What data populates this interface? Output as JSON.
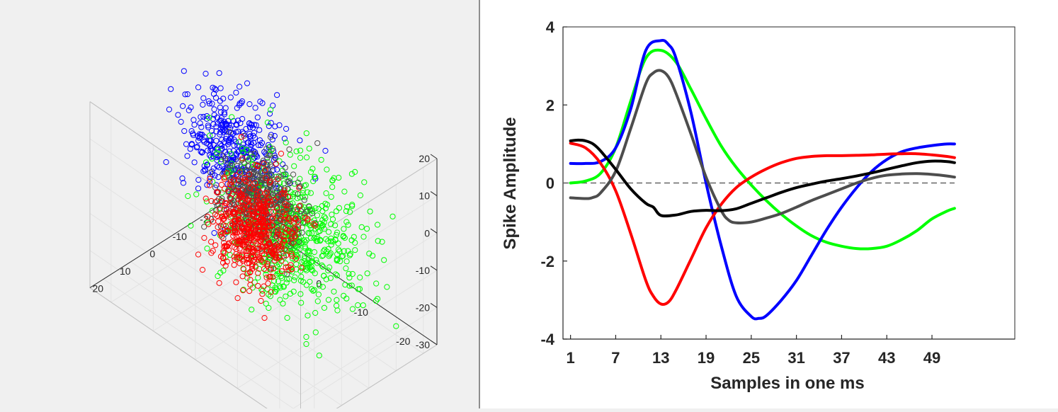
{
  "chart_data": [
    {
      "type": "scatter",
      "title": "",
      "xlabel": "",
      "ylabel": "",
      "zlabel": "",
      "xlim": [
        -25,
        25
      ],
      "ylim": [
        -25,
        25
      ],
      "zlim": [
        -30,
        20
      ],
      "x_ticks": [
        "-20",
        "-10",
        "0",
        "10",
        "20"
      ],
      "y_ticks": [
        "-20",
        "-10",
        "0",
        "10",
        "20"
      ],
      "z_ticks": [
        "-30",
        "-20",
        "-10",
        "0",
        "10",
        "20"
      ],
      "grid": true,
      "series": [
        {
          "color": "#0000ff",
          "count": 380,
          "center": [
            15,
            -12,
            -2
          ],
          "spread": [
            5,
            5,
            6
          ]
        },
        {
          "color": "#00ff00",
          "count": 700,
          "center": [
            -2,
            -6,
            -9
          ],
          "spread": [
            7,
            7,
            8
          ]
        },
        {
          "color": "#4d4d4d",
          "count": 420,
          "center": [
            2,
            -2,
            -1
          ],
          "spread": [
            4,
            4,
            5
          ]
        },
        {
          "color": "#ff0000",
          "count": 520,
          "center": [
            -6,
            13,
            4
          ],
          "spread": [
            4,
            5,
            6
          ]
        }
      ]
    },
    {
      "type": "line",
      "title": "",
      "xlabel": "Samples in one ms",
      "ylabel": "Spike Amplitude",
      "xlim": [
        0,
        60
      ],
      "ylim": [
        -4,
        4
      ],
      "x_ticks": [
        1,
        7,
        13,
        19,
        25,
        31,
        37,
        43,
        49
      ],
      "y_ticks": [
        4,
        2,
        0,
        -2,
        -4
      ],
      "zero_line": {
        "style": "dashed",
        "color": "#666666"
      },
      "series": [
        {
          "color": "#00ff00",
          "x": [
            1,
            3,
            5,
            7,
            9,
            11,
            13,
            15,
            17,
            19,
            21,
            23,
            25,
            27,
            29,
            31,
            33,
            35,
            37,
            39,
            41,
            43,
            45,
            47,
            49,
            51,
            52
          ],
          "y": [
            0,
            0.05,
            0.25,
            0.9,
            2.1,
            3.2,
            3.4,
            3.1,
            2.4,
            1.65,
            0.95,
            0.4,
            -0.05,
            -0.45,
            -0.8,
            -1.1,
            -1.35,
            -1.52,
            -1.62,
            -1.68,
            -1.68,
            -1.62,
            -1.45,
            -1.22,
            -0.92,
            -0.72,
            -0.65
          ]
        },
        {
          "color": "#0000ff",
          "x": [
            1,
            3,
            5,
            7,
            9,
            11,
            13,
            14,
            15,
            17,
            19,
            21,
            23,
            25,
            26,
            27,
            29,
            31,
            33,
            35,
            37,
            39,
            41,
            43,
            45,
            47,
            49,
            51,
            52
          ],
          "y": [
            0.5,
            0.5,
            0.55,
            0.9,
            1.9,
            3.4,
            3.65,
            3.55,
            3.2,
            1.8,
            0.0,
            -1.6,
            -2.9,
            -3.42,
            -3.47,
            -3.4,
            -3.0,
            -2.5,
            -1.85,
            -1.2,
            -0.62,
            -0.12,
            0.3,
            0.6,
            0.8,
            0.9,
            0.96,
            1.0,
            1.0
          ]
        },
        {
          "color": "#ff0000",
          "x": [
            1,
            3,
            5,
            7,
            9,
            11,
            12,
            13,
            14,
            15,
            17,
            19,
            21,
            23,
            25,
            27,
            29,
            31,
            33,
            35,
            37,
            39,
            41,
            43,
            45,
            47,
            49,
            51,
            52
          ],
          "y": [
            1.02,
            0.9,
            0.5,
            -0.2,
            -1.3,
            -2.5,
            -2.9,
            -3.1,
            -3.05,
            -2.75,
            -1.95,
            -1.15,
            -0.55,
            -0.12,
            0.15,
            0.36,
            0.52,
            0.63,
            0.68,
            0.7,
            0.7,
            0.71,
            0.72,
            0.74,
            0.75,
            0.75,
            0.72,
            0.68,
            0.65
          ]
        },
        {
          "color": "#4d4d4d",
          "x": [
            1,
            3,
            4,
            5,
            7,
            9,
            11,
            12,
            13,
            14,
            15,
            17,
            19,
            21,
            22,
            23,
            25,
            27,
            29,
            31,
            33,
            35,
            37,
            39,
            41,
            43,
            45,
            47,
            49,
            51,
            52
          ],
          "y": [
            -0.38,
            -0.4,
            -0.37,
            -0.25,
            0.3,
            1.4,
            2.55,
            2.82,
            2.88,
            2.72,
            2.3,
            1.25,
            0.15,
            -0.7,
            -0.95,
            -1.02,
            -1.0,
            -0.9,
            -0.78,
            -0.62,
            -0.45,
            -0.3,
            -0.15,
            0.0,
            0.12,
            0.2,
            0.23,
            0.24,
            0.22,
            0.18,
            0.15
          ]
        },
        {
          "color": "#000000",
          "x": [
            1,
            2,
            3,
            4,
            5,
            7,
            9,
            11,
            12,
            13,
            15,
            17,
            19,
            21,
            23,
            25,
            27,
            29,
            31,
            33,
            35,
            37,
            39,
            41,
            43,
            45,
            47,
            49,
            51,
            52
          ],
          "y": [
            1.08,
            1.1,
            1.08,
            1.0,
            0.82,
            0.35,
            -0.15,
            -0.52,
            -0.62,
            -0.83,
            -0.82,
            -0.73,
            -0.7,
            -0.71,
            -0.66,
            -0.52,
            -0.38,
            -0.24,
            -0.12,
            -0.03,
            0.05,
            0.11,
            0.18,
            0.26,
            0.35,
            0.44,
            0.52,
            0.56,
            0.55,
            0.52
          ]
        }
      ]
    }
  ]
}
